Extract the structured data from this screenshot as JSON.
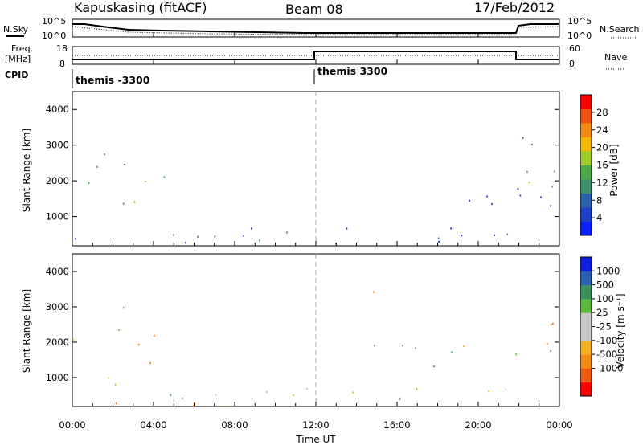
{
  "header": {
    "station": "Kapuskasing (fitACF)",
    "beam": "Beam 08",
    "date": "17/Feb/2012"
  },
  "summary_panels": {
    "nsky_label": "N.Sky",
    "nsearch_label": "N.Search",
    "noise_ticks": [
      "10^5",
      "10^0"
    ],
    "freq_label_1": "Freq.",
    "freq_label_2": "[MHz]",
    "freq_ticks": [
      "18",
      "8"
    ],
    "nave_label": "Nave",
    "nave_ticks": [
      "60",
      "0"
    ],
    "cpid_label": "CPID",
    "cpid_entries": [
      {
        "name": "themis -3300",
        "start_hour": 0,
        "end_hour": 12
      },
      {
        "name": "themis 3300",
        "start_hour": 12,
        "end_hour": 24
      }
    ]
  },
  "x_axis": {
    "label": "Time UT",
    "ticks": [
      "00:00",
      "04:00",
      "08:00",
      "12:00",
      "16:00",
      "20:00",
      "00:00"
    ]
  },
  "colors": {
    "power_scale": [
      "#0a1fff",
      "#1e3fc8",
      "#2c5fa8",
      "#3d8f6a",
      "#4aa84a",
      "#9dcc2a",
      "#f5b800",
      "#f08a10",
      "#f05010",
      "#ff0000"
    ],
    "velocity_scale": [
      "#ff0000",
      "#f05a10",
      "#f08a10",
      "#f2b020",
      "#c8c8c8",
      "#c8c8c8",
      "#5ab83c",
      "#3a8f5a",
      "#2a5fb0",
      "#1020e0"
    ]
  },
  "chart_data": [
    {
      "type": "heatmap",
      "title": "",
      "xlabel": "Time UT",
      "ylabel": "Slant Range [km]",
      "x_range_hours": [
        0,
        24
      ],
      "ylim": [
        180,
        4500
      ],
      "yticks": [
        1000,
        2000,
        3000,
        4000
      ],
      "colorbar": {
        "label": "Power [dB]",
        "range": [
          0,
          32
        ],
        "ticks": [
          4,
          8,
          12,
          16,
          20,
          24,
          28
        ]
      },
      "echo_regions": [
        {
          "t": [
            0.0,
            1.2
          ],
          "r": [
            1600,
            2800
          ],
          "level": 12
        },
        {
          "t": [
            1.3,
            2.8
          ],
          "r": [
            1000,
            3000
          ],
          "level": 9
        },
        {
          "t": [
            2.5,
            4.8
          ],
          "r": [
            1200,
            2300
          ],
          "level": 20
        },
        {
          "t": [
            0.0,
            22.0
          ],
          "r": [
            200,
            900
          ],
          "level": 7
        },
        {
          "t": [
            14.0,
            24.0
          ],
          "r": [
            1200,
            1800
          ],
          "level": 6
        },
        {
          "t": [
            22.0,
            24.0
          ],
          "r": [
            800,
            3400
          ],
          "level": 13
        },
        {
          "t": [
            8.7,
            8.9
          ],
          "r": [
            3950,
            4450
          ],
          "level": 5
        }
      ]
    },
    {
      "type": "heatmap",
      "title": "",
      "xlabel": "Time UT",
      "ylabel": "Slant Range [km]",
      "x_range_hours": [
        0,
        24
      ],
      "ylim": [
        180,
        4500
      ],
      "yticks": [
        1000,
        2000,
        3000,
        4000
      ],
      "colorbar": {
        "label": "Velocity [m s⁻¹]",
        "ticks": [
          1000,
          500,
          100,
          25,
          -25,
          -100,
          -500,
          -1000
        ]
      },
      "echo_regions": [
        {
          "t": [
            0.0,
            1.2
          ],
          "r": [
            1800,
            2700
          ],
          "v": -150
        },
        {
          "t": [
            1.3,
            2.8
          ],
          "r": [
            1000,
            3000
          ],
          "v": 0
        },
        {
          "t": [
            2.5,
            4.8
          ],
          "r": [
            1200,
            2300
          ],
          "v": -200
        },
        {
          "t": [
            0.0,
            22.0
          ],
          "r": [
            200,
            900
          ],
          "v": 0
        },
        {
          "t": [
            14.0,
            24.0
          ],
          "r": [
            1200,
            2000
          ],
          "v": 0
        },
        {
          "t": [
            14.5,
            15.5
          ],
          "r": [
            2500,
            3600
          ],
          "v": -200
        },
        {
          "t": [
            22.5,
            24.0
          ],
          "r": [
            2300,
            3400
          ],
          "v": -200
        }
      ]
    }
  ]
}
